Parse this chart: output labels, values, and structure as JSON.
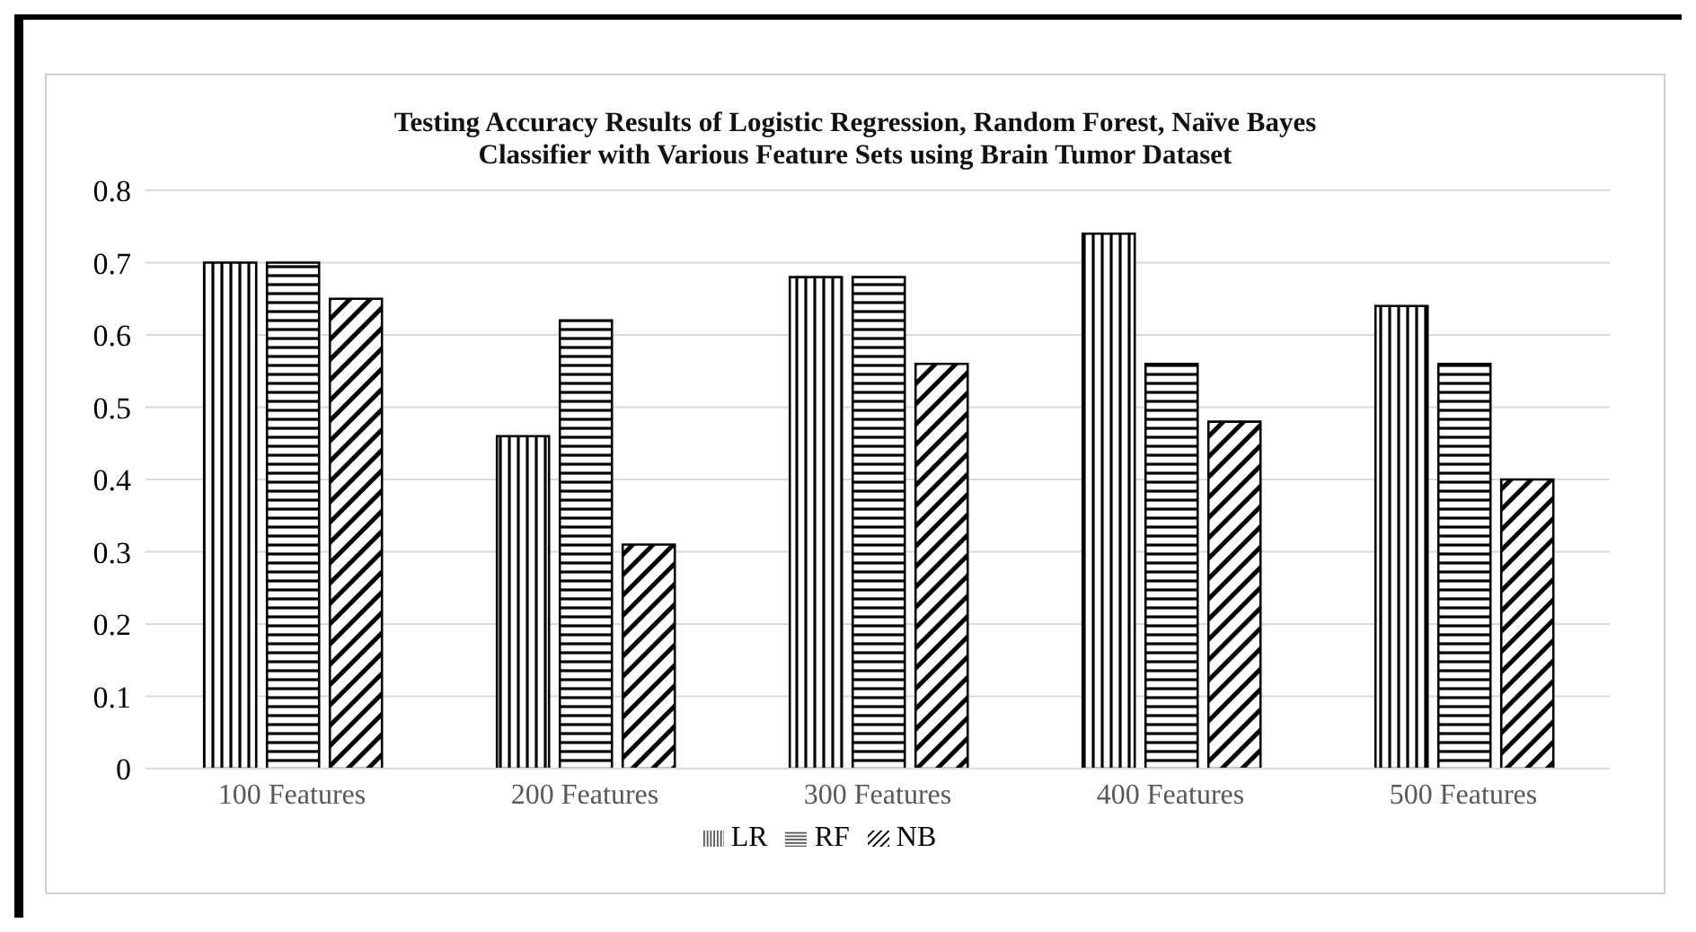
{
  "chart_data": {
    "type": "bar",
    "title": "Testing Accuracy Results of Logistic Regression, Random Forest, Naïve Bayes Classifier with Various Feature Sets using Brain Tumor Dataset",
    "categories": [
      "100 Features",
      "200 Features",
      "300 Features",
      "400 Features",
      "500 Features"
    ],
    "series": [
      {
        "name": "LR",
        "color": "#000000",
        "values": [
          0.7,
          0.46,
          0.68,
          0.74,
          0.64
        ]
      },
      {
        "name": "RF",
        "color": "#000000",
        "values": [
          0.7,
          0.62,
          0.68,
          0.56,
          0.56
        ]
      },
      {
        "name": "NB",
        "color": "#000000",
        "values": [
          0.65,
          0.31,
          0.56,
          0.48,
          0.4
        ]
      }
    ],
    "ylim": [
      0,
      0.8
    ],
    "yticks": [
      0,
      0.1,
      0.2,
      0.3,
      0.4,
      0.5,
      0.6,
      0.7,
      0.8
    ],
    "grid": "y",
    "legend": "bottom"
  }
}
